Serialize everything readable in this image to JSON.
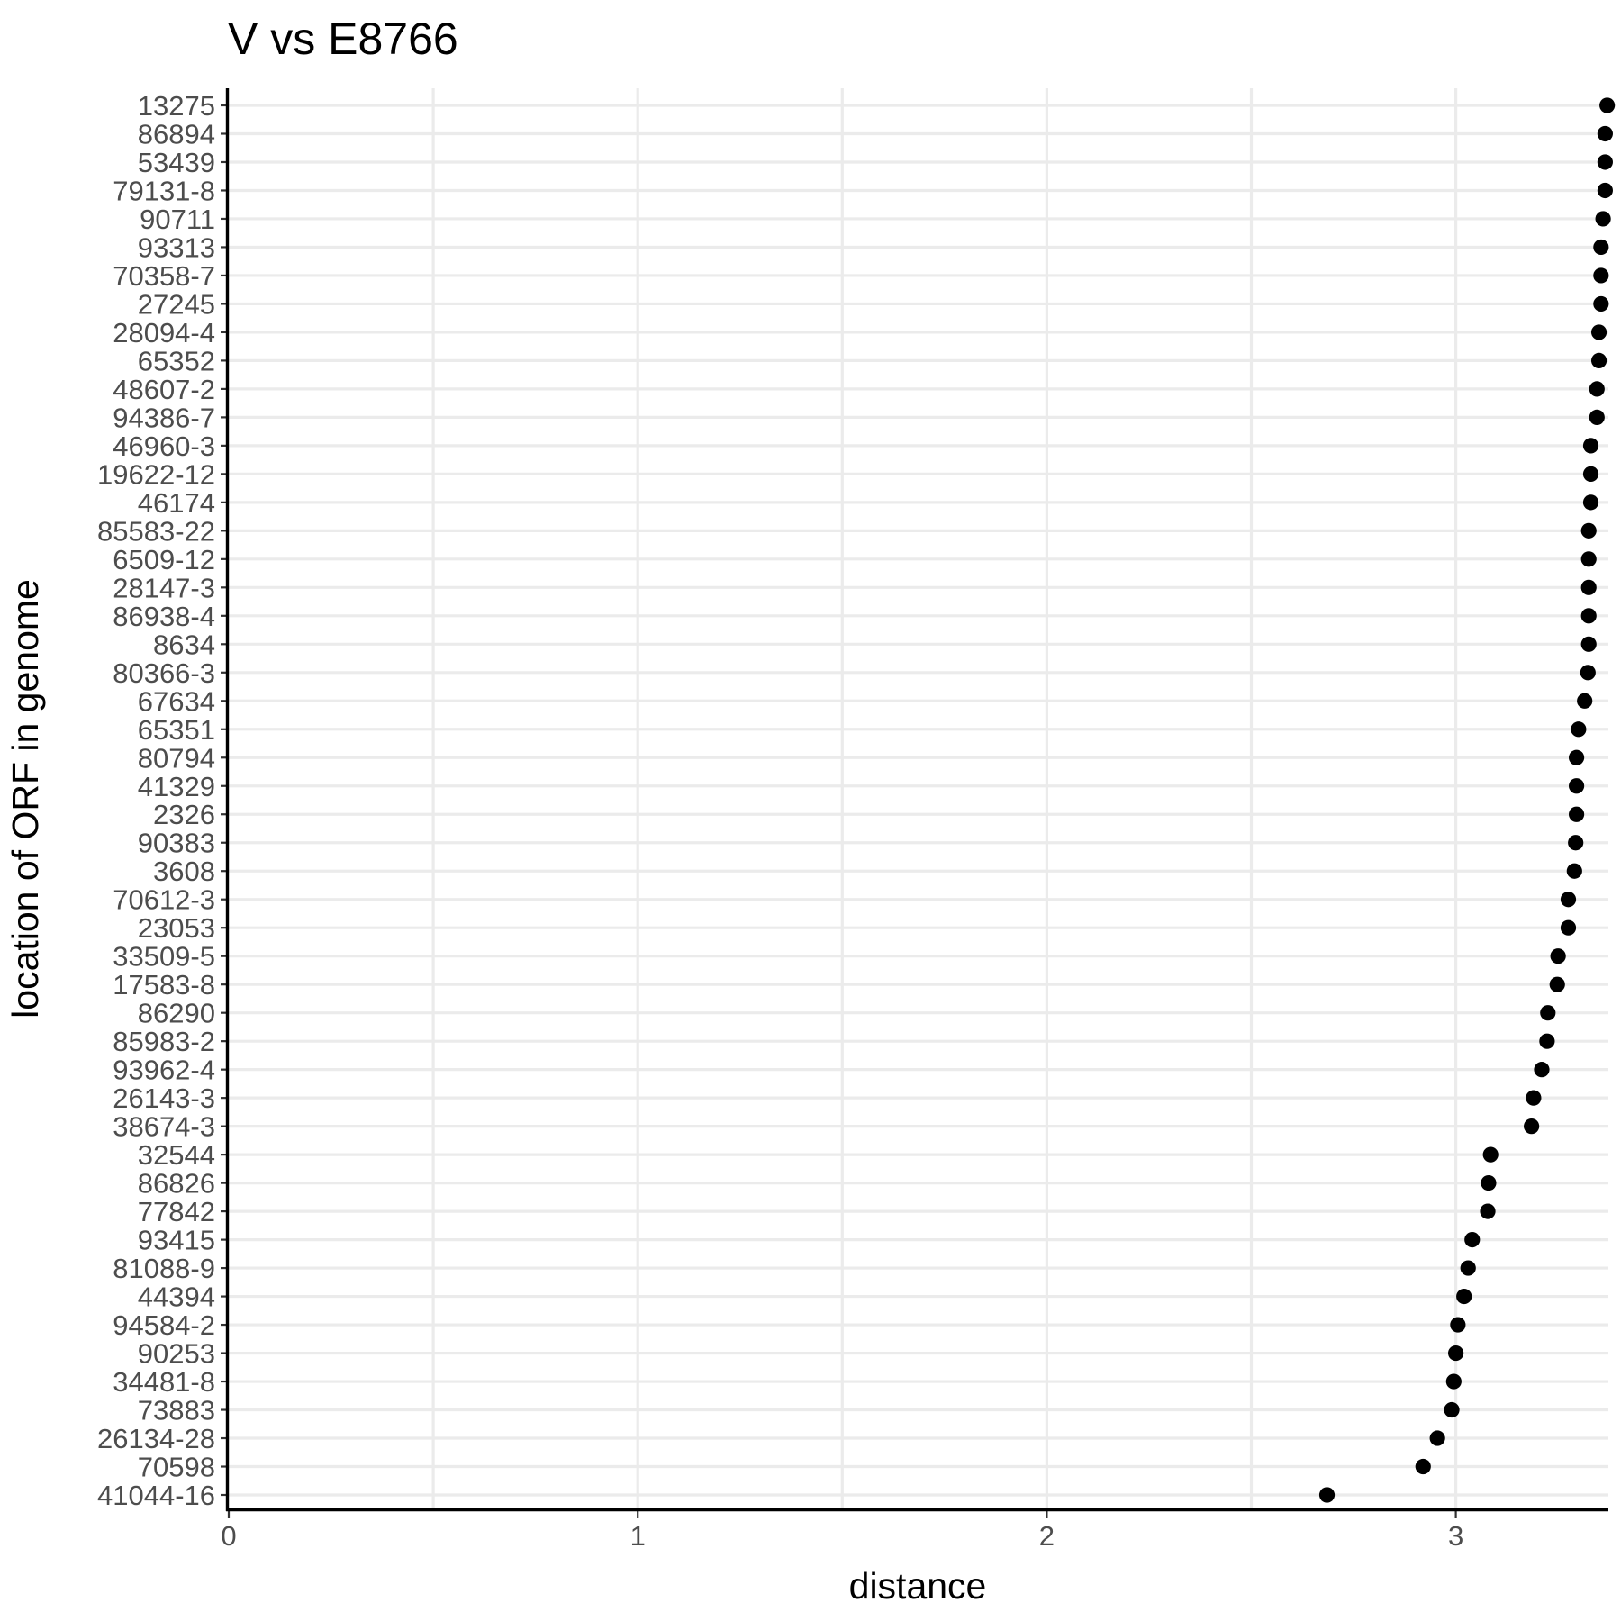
{
  "chart_data": {
    "type": "scatter",
    "title": "V vs E8766",
    "xlabel": "distance",
    "ylabel": "location of ORF in genome",
    "xlim": [
      0,
      3.37
    ],
    "x_ticks": [
      0,
      1,
      2,
      3
    ],
    "x_tick_labels": [
      "0",
      "1",
      "2",
      "3"
    ],
    "grid": true,
    "legend": "none",
    "point_color": "#000000",
    "categories": [
      "13275",
      "86894",
      "53439",
      "79131-8",
      "90711",
      "93313",
      "70358-7",
      "27245",
      "28094-4",
      "65352",
      "48607-2",
      "94386-7",
      "46960-3",
      "19622-12",
      "46174",
      "85583-22",
      "6509-12",
      "28147-3",
      "86938-4",
      "8634",
      "80366-3",
      "67634",
      "65351",
      "80794",
      "41329",
      "2326",
      "90383",
      "3608",
      "70612-3",
      "23053",
      "33509-5",
      "17583-8",
      "86290",
      "85983-2",
      "93962-4",
      "26143-3",
      "38674-3",
      "32544",
      "86826",
      "77842",
      "93415",
      "81088-9",
      "44394",
      "94584-2",
      "90253",
      "34481-8",
      "73883",
      "26134-28",
      "70598",
      "41044-16"
    ],
    "values": [
      3.37,
      3.365,
      3.365,
      3.365,
      3.36,
      3.355,
      3.355,
      3.355,
      3.35,
      3.35,
      3.345,
      3.345,
      3.33,
      3.33,
      3.33,
      3.325,
      3.325,
      3.325,
      3.325,
      3.325,
      3.323,
      3.315,
      3.3,
      3.295,
      3.295,
      3.295,
      3.293,
      3.29,
      3.275,
      3.275,
      3.25,
      3.248,
      3.225,
      3.223,
      3.21,
      3.19,
      3.185,
      3.085,
      3.08,
      3.078,
      3.04,
      3.03,
      3.02,
      3.005,
      3.0,
      2.995,
      2.99,
      2.955,
      2.92,
      2.685
    ]
  }
}
